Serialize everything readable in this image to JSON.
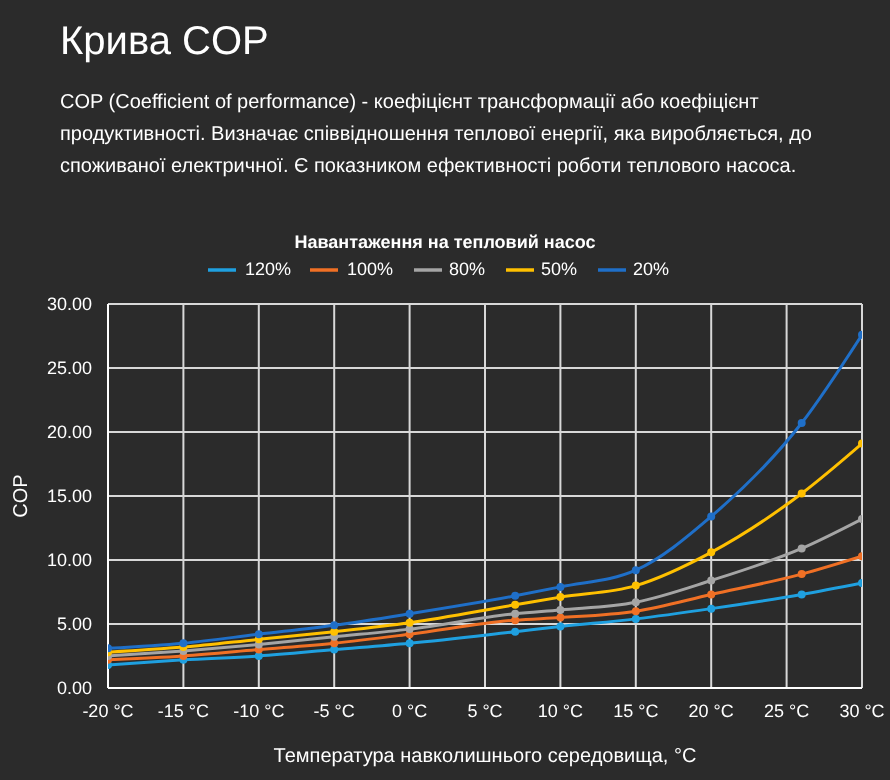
{
  "chart_data": {
    "type": "line",
    "title": "Крива COP",
    "subtitle": "COP (Coefficient of performance) - коефіцієнт трансформації або коефіцієнт продуктивності. Визначає співвідношення теплової енергії, яка виробляється, до споживаної електричної. Є показником ефективності роботи теплового насоса.",
    "legend_title": "Навантаження на тепловий насос",
    "xlabel": "Температура навколишнього середовища, °C",
    "ylabel": "COP",
    "x": [
      -20,
      -15,
      -10,
      -5,
      0,
      7,
      10,
      15,
      20,
      26,
      30
    ],
    "series": [
      {
        "name": "120%",
        "color": "#1fa0e0",
        "values": [
          1.8,
          2.2,
          2.5,
          3.0,
          3.5,
          4.4,
          4.8,
          5.4,
          6.2,
          7.3,
          8.2
        ]
      },
      {
        "name": "100%",
        "color": "#f07025",
        "values": [
          2.2,
          2.5,
          3.0,
          3.5,
          4.2,
          5.3,
          5.5,
          6.0,
          7.3,
          8.9,
          10.3
        ]
      },
      {
        "name": "80%",
        "color": "#a5a5a5",
        "values": [
          2.5,
          2.9,
          3.4,
          4.0,
          4.6,
          5.8,
          6.1,
          6.7,
          8.4,
          10.9,
          13.2
        ]
      },
      {
        "name": "50%",
        "color": "#ffc000",
        "values": [
          2.8,
          3.2,
          3.8,
          4.4,
          5.1,
          6.5,
          7.1,
          8.0,
          10.6,
          15.2,
          19.1
        ]
      },
      {
        "name": "20%",
        "color": "#1f6fc8",
        "values": [
          3.1,
          3.5,
          4.2,
          4.9,
          5.8,
          7.2,
          7.9,
          9.2,
          13.4,
          20.7,
          27.6
        ]
      }
    ],
    "xlim": [
      -20,
      30
    ],
    "xticks": [
      {
        "value": -20,
        "label": "-20 °C"
      },
      {
        "value": -15,
        "label": "-15 °C"
      },
      {
        "value": -10,
        "label": "-10 °C"
      },
      {
        "value": -5,
        "label": "-5 °C"
      },
      {
        "value": 0,
        "label": "0 °C"
      },
      {
        "value": 5,
        "label": "5 °C"
      },
      {
        "value": 10,
        "label": "10 °C"
      },
      {
        "value": 15,
        "label": "15 °C"
      },
      {
        "value": 20,
        "label": "20 °C"
      },
      {
        "value": 25,
        "label": "25 °C"
      },
      {
        "value": 30,
        "label": "30 °C"
      }
    ],
    "ylim": [
      0,
      30
    ],
    "yticks": [
      {
        "value": 0,
        "label": "0.00"
      },
      {
        "value": 5,
        "label": "5.00"
      },
      {
        "value": 10,
        "label": "10.00"
      },
      {
        "value": 15,
        "label": "15.00"
      },
      {
        "value": 20,
        "label": "20.00"
      },
      {
        "value": 25,
        "label": "25.00"
      },
      {
        "value": 30,
        "label": "30.00"
      }
    ],
    "grid": true,
    "legend": "top",
    "marker": "circle",
    "line_style": "solid"
  }
}
